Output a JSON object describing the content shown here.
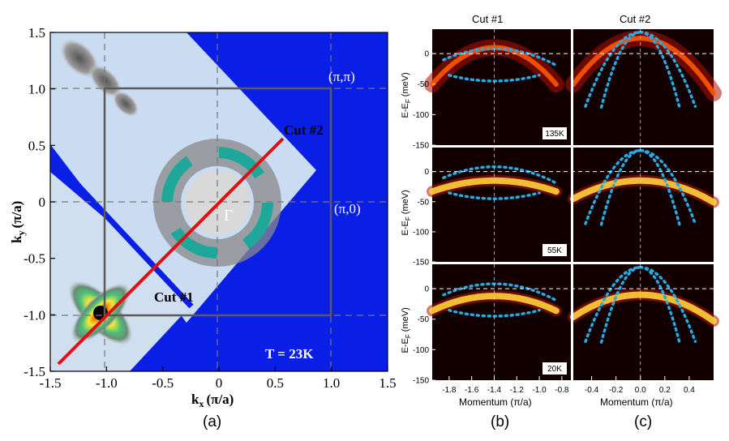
{
  "colors": {
    "map_background": "#0a1fe6",
    "light_blue": "#c9dcf2",
    "cut_line": "#e01010",
    "guide_box": "#555555",
    "dotted_fit": "#2aa8e0",
    "edc_dark": "#120000"
  },
  "chart_data": [
    {
      "type": "heatmap",
      "panel_label": "(a)",
      "xlabel_main": "k",
      "xlabel_sub": "x",
      "xlabel_unit": "(π/a)",
      "ylabel_main": "k",
      "ylabel_sub": "y",
      "ylabel_unit": "(π/a)",
      "xlim": [
        -1.5,
        1.5
      ],
      "ylim": [
        -1.5,
        1.5
      ],
      "xticks": [
        "-1.5",
        "-1.0",
        "-0.5",
        "0",
        "0.5",
        "1.0",
        "1.5"
      ],
      "yticks": [
        "1.5",
        "1.0",
        "0.5",
        "0",
        "-0.5",
        "-1.0",
        "-1.5"
      ],
      "annotations": {
        "pi_pi": "(π,π)",
        "pi_0": "(π,0)",
        "gamma": "Γ",
        "cut1": "Cut #1",
        "cut2": "Cut #2",
        "temperature": "T = 23K"
      },
      "cut_line": {
        "start": [
          -1.4,
          -1.45
        ],
        "end": [
          0.58,
          0.55
        ]
      },
      "zone_box": {
        "x": [
          -1.0,
          1.0
        ],
        "y": [
          -1.0,
          1.0
        ]
      }
    },
    {
      "type": "heatmap",
      "panel_label": "(b)",
      "title": "Cut #1",
      "xlabel": "Momentum (π/a)",
      "ylabel_main": "E-E",
      "ylabel_sub": "F",
      "ylabel_unit": " (meV)",
      "xlim": [
        -1.95,
        -0.72
      ],
      "ylim": [
        -150,
        40
      ],
      "xticks": [
        "-1.8",
        "-1.6",
        "-1.4",
        "-1.2",
        "-1.0",
        "-0.8"
      ],
      "yticks": [
        "0",
        "-50",
        "-100",
        "-150"
      ],
      "temperatures": [
        "135K",
        "55K",
        "20K"
      ]
    },
    {
      "type": "heatmap",
      "panel_label": "(c)",
      "title": "Cut #2",
      "xlabel": "Momentum (π/a)",
      "xlim": [
        -0.55,
        0.6
      ],
      "ylim": [
        -150,
        40
      ],
      "xticks": [
        "-0.4",
        "-0.2",
        "0.0",
        "0.2",
        "0.4"
      ]
    }
  ]
}
